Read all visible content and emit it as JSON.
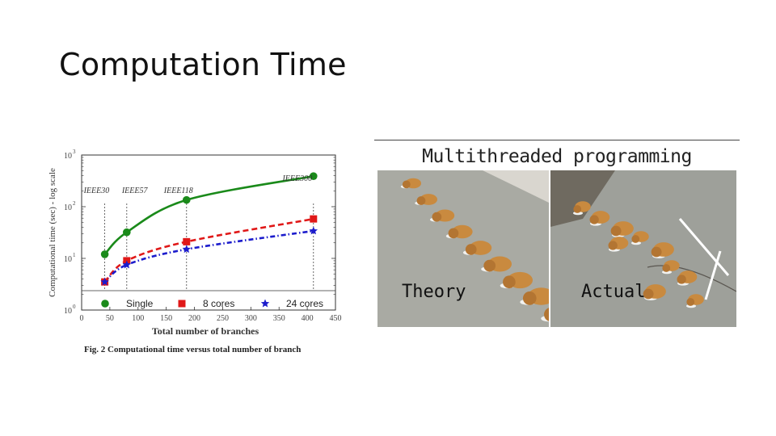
{
  "slide": {
    "title": "Computation Time"
  },
  "figure_caption": "Fig. 2 Computational time versus total number of branch",
  "meme": {
    "title": "Multithreaded programming",
    "left_label": "Theory",
    "right_label": "Actual",
    "colors": {
      "puppy": "#c98a3f",
      "ground": "#a9aaa3"
    }
  },
  "chart_data": {
    "type": "line",
    "xlabel": "Total number of branches",
    "ylabel": "Computational time (sec) - log scale",
    "xlim": [
      0,
      450
    ],
    "ylim": [
      1,
      1000
    ],
    "y_scale": "log",
    "x_ticks": [
      "0",
      "50",
      "100",
      "150",
      "200",
      "250",
      "300",
      "350",
      "400",
      "450"
    ],
    "y_ticks": [
      {
        "base": "10",
        "exp": "0"
      },
      {
        "base": "10",
        "exp": "1"
      },
      {
        "base": "10",
        "exp": "2"
      },
      {
        "base": "10",
        "exp": "3"
      }
    ],
    "systems": [
      {
        "name": "IEEE30",
        "x": 41
      },
      {
        "name": "IEEE57",
        "x": 80
      },
      {
        "name": "IEEE118",
        "x": 186
      },
      {
        "name": "IEEE300",
        "x": 411
      }
    ],
    "x": [
      41,
      80,
      186,
      411
    ],
    "series": [
      {
        "name": "Single",
        "color": "#1a8a1a",
        "marker": "circle",
        "dash": "solid",
        "values": [
          12,
          32,
          135,
          390
        ]
      },
      {
        "name": "8 cores",
        "color": "#e01818",
        "marker": "square",
        "dash": "dashed",
        "values": [
          3.5,
          9,
          21,
          58
        ]
      },
      {
        "name": "24 cores",
        "color": "#1c1ccc",
        "marker": "star",
        "dash": "dashdot",
        "values": [
          3.5,
          7.5,
          15,
          34
        ]
      }
    ],
    "legend": "bottom, inside plot"
  }
}
